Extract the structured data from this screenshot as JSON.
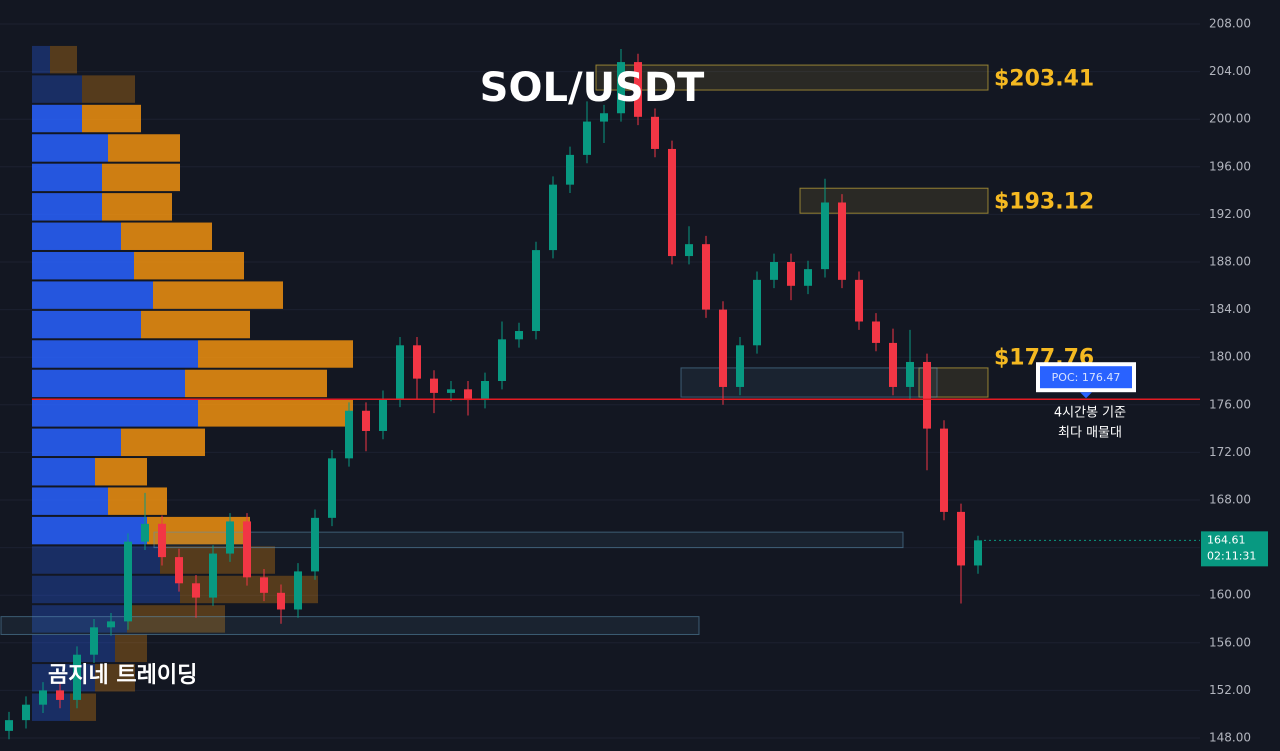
{
  "chart_data": {
    "type": "candlestick",
    "title": "SOL/USDT",
    "watermark": "곰지네 트레이딩",
    "up_color": "#089981",
    "down_color": "#f23645",
    "ylim": [
      148,
      208
    ],
    "yticks": [
      {
        "value": 148,
        "label": "148.00"
      },
      {
        "value": 152,
        "label": "152.00"
      },
      {
        "value": 156,
        "label": "156.00"
      },
      {
        "value": 160,
        "label": "160.00"
      },
      {
        "value": 164,
        "label": "164.00"
      },
      {
        "value": 168,
        "label": "168.00"
      },
      {
        "value": 172,
        "label": "172.00"
      },
      {
        "value": 176,
        "label": "176.00"
      },
      {
        "value": 180,
        "label": "180.00"
      },
      {
        "value": 184,
        "label": "184.00"
      },
      {
        "value": 188,
        "label": "188.00"
      },
      {
        "value": 192,
        "label": "192.00"
      },
      {
        "value": 196,
        "label": "196.00"
      },
      {
        "value": 200,
        "label": "200.00"
      },
      {
        "value": 204,
        "label": "204.00"
      },
      {
        "value": 208,
        "label": "208.00"
      }
    ],
    "grid": true,
    "candles": [
      [
        148.6,
        150.2,
        147.9,
        149.5
      ],
      [
        149.5,
        151.5,
        148.8,
        150.8
      ],
      [
        150.8,
        152.7,
        150.1,
        152.0
      ],
      [
        152.0,
        152.7,
        150.5,
        151.2
      ],
      [
        151.2,
        155.7,
        150.5,
        155.0
      ],
      [
        155.0,
        158.0,
        154.3,
        157.3
      ],
      [
        157.3,
        158.5,
        156.6,
        157.8
      ],
      [
        157.8,
        165.2,
        157.1,
        164.5
      ],
      [
        164.5,
        168.6,
        163.8,
        166.0
      ],
      [
        166.0,
        166.7,
        162.5,
        163.2
      ],
      [
        163.2,
        163.9,
        160.3,
        161.0
      ],
      [
        161.0,
        161.7,
        158.1,
        159.8
      ],
      [
        159.8,
        164.2,
        159.1,
        163.5
      ],
      [
        163.5,
        166.9,
        162.8,
        166.2
      ],
      [
        166.2,
        166.9,
        160.8,
        161.5
      ],
      [
        161.5,
        162.2,
        159.5,
        160.2
      ],
      [
        160.2,
        160.9,
        157.6,
        158.8
      ],
      [
        158.8,
        162.7,
        158.1,
        162.0
      ],
      [
        162.0,
        167.2,
        161.3,
        166.5
      ],
      [
        166.5,
        172.2,
        165.8,
        171.5
      ],
      [
        171.5,
        176.2,
        170.8,
        175.5
      ],
      [
        175.5,
        176.2,
        172.1,
        173.8
      ],
      [
        173.8,
        177.2,
        173.1,
        176.5
      ],
      [
        176.5,
        181.7,
        175.8,
        181.0
      ],
      [
        181.0,
        181.7,
        176.5,
        178.2
      ],
      [
        178.2,
        178.9,
        175.3,
        177.0
      ],
      [
        177.0,
        178.0,
        176.3,
        177.3
      ],
      [
        177.3,
        178.0,
        175.1,
        176.4
      ],
      [
        176.4,
        178.7,
        175.7,
        178.0
      ],
      [
        178.0,
        183.0,
        177.3,
        181.5
      ],
      [
        181.5,
        182.9,
        180.8,
        182.2
      ],
      [
        182.2,
        189.7,
        181.5,
        189.0
      ],
      [
        189.0,
        195.2,
        188.3,
        194.5
      ],
      [
        194.5,
        197.7,
        193.8,
        197.0
      ],
      [
        197.0,
        201.5,
        196.3,
        199.8
      ],
      [
        199.8,
        201.2,
        198.0,
        200.5
      ],
      [
        200.5,
        205.9,
        199.8,
        204.8
      ],
      [
        204.8,
        205.5,
        199.5,
        200.2
      ],
      [
        200.2,
        200.9,
        196.8,
        197.5
      ],
      [
        197.5,
        198.2,
        187.8,
        188.5
      ],
      [
        188.5,
        191.0,
        187.8,
        189.5
      ],
      [
        189.5,
        190.2,
        183.3,
        184.0
      ],
      [
        184.0,
        184.7,
        176.0,
        177.5
      ],
      [
        177.5,
        181.7,
        176.8,
        181.0
      ],
      [
        181.0,
        187.2,
        180.3,
        186.5
      ],
      [
        186.5,
        188.7,
        185.8,
        188.0
      ],
      [
        188.0,
        188.7,
        184.8,
        186.0
      ],
      [
        186.0,
        188.1,
        185.3,
        187.4
      ],
      [
        187.4,
        195.0,
        186.7,
        193.0
      ],
      [
        193.0,
        193.7,
        185.8,
        186.5
      ],
      [
        186.5,
        187.2,
        182.3,
        183.0
      ],
      [
        183.0,
        183.7,
        180.5,
        181.2
      ],
      [
        181.2,
        182.4,
        176.8,
        177.5
      ],
      [
        177.5,
        182.3,
        176.4,
        179.6
      ],
      [
        179.6,
        180.3,
        170.5,
        174.0
      ],
      [
        174.0,
        174.7,
        166.3,
        167.0
      ],
      [
        167.0,
        167.7,
        159.3,
        162.5
      ],
      [
        162.5,
        165.0,
        161.8,
        164.61
      ]
    ],
    "countdown": "02:11:31",
    "zones": [
      {
        "label": "$203.41",
        "low": 202.45,
        "high": 204.55,
        "from": 35,
        "to": 57,
        "color": "#f5d142"
      },
      {
        "label": "$193.12",
        "low": 192.1,
        "high": 194.2,
        "from": 47,
        "to": 57,
        "color": "#f5d142"
      },
      {
        "label": "$177.76",
        "low": 176.65,
        "high": 179.1,
        "from": 54,
        "to": 57,
        "color": "#f5d142"
      },
      {
        "low": 176.65,
        "high": 179.1,
        "from": 40,
        "to": 54,
        "color": "#5b8fb0"
      },
      {
        "low": 164.0,
        "high": 165.3,
        "from": 9,
        "to": 52,
        "color": "#5b8fb0"
      },
      {
        "low": 156.7,
        "high": 158.2,
        "from": 0,
        "to": 40,
        "color": "#5b8fb0"
      }
    ],
    "poc": {
      "value": 176.47,
      "label": "POC: 176.47",
      "color": "#e31b23"
    },
    "poc_notes": [
      "4시간봉 기준",
      "최다 매물대"
    ],
    "profile": {
      "range": [
        149.35,
        206.24
      ],
      "value_area": [
        163.4,
        201.5
      ],
      "series": [
        {
          "color": "#2962ff",
          "values": [
            18,
            50,
            50,
            76,
            70,
            70,
            89,
            102,
            121,
            109,
            166,
            153,
            166,
            89,
            63,
            76,
            115,
            128,
            148,
            95,
            83,
            63,
            38
          ]
        },
        {
          "color": "#f0900f",
          "values": [
            27,
            53,
            59,
            72,
            78,
            70,
            91,
            110,
            130,
            109,
            155,
            142,
            155,
            84,
            52,
            59,
            103,
            115,
            138,
            98,
            32,
            40,
            26
          ]
        }
      ]
    }
  }
}
